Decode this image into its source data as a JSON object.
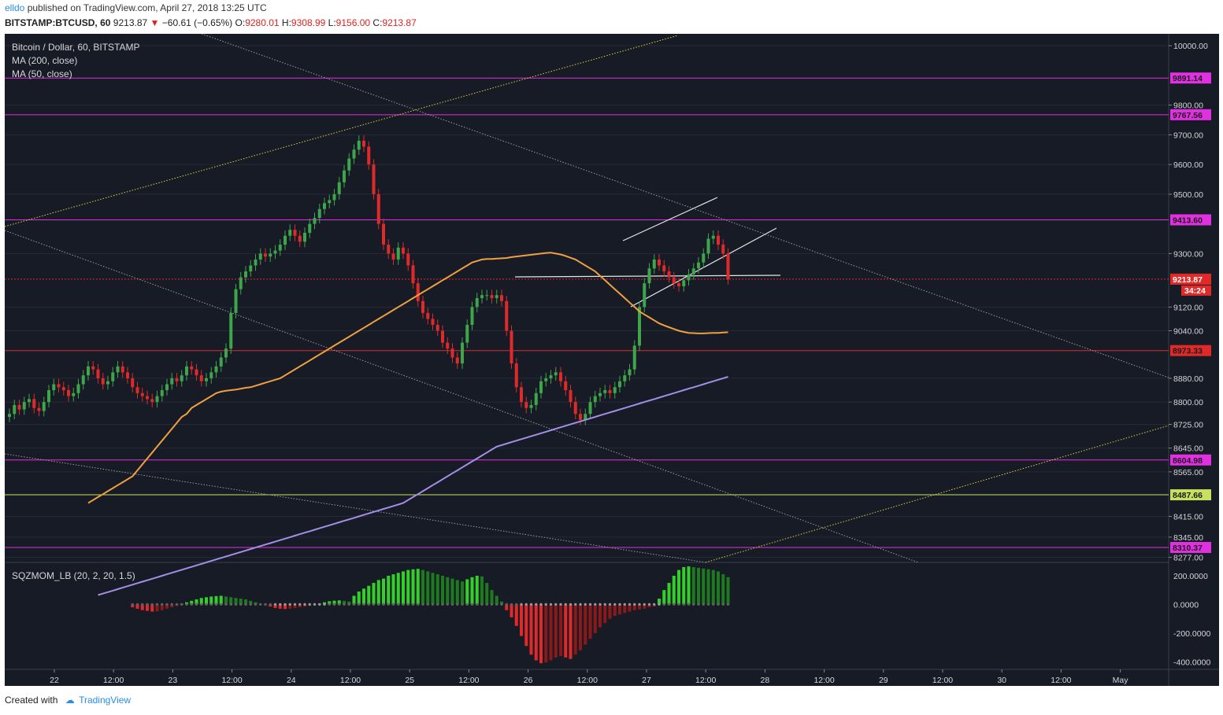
{
  "header": {
    "user": "elldo",
    "published": "published on TradingView.com, April 27, 2018 13:25 UTC",
    "symbol": "BITSTAMP:BTCUSD, 60",
    "last": "9213.87",
    "arrow": "▼",
    "change": "−60.61 (−0.65%)",
    "o_label": "O:",
    "o": "9280.01",
    "h_label": "H:",
    "h": "9308.99",
    "l_label": "L:",
    "l": "9156.00",
    "c_label": "C:",
    "c": "9213.87"
  },
  "legend": {
    "title": "Bitcoin / Dollar, 60, BITSTAMP",
    "ma200": "MA (200, close)",
    "ma50": "MA (50, close)",
    "sqz": "SQZMOM_LB (20, 2, 20, 1.5)"
  },
  "footer": {
    "created": "Created with",
    "brand": "TradingView"
  },
  "colors": {
    "background": "#171b26",
    "up": "#3fa54a",
    "down": "#e02a2a",
    "ma50": "#f0a040",
    "ma200": "#a58ee6",
    "level": "#e030e0",
    "level_green": "#c8e060",
    "trend_yellow": "#d8d040",
    "grid": "#252a38"
  },
  "chart_data": {
    "type": "candlestick",
    "x_axis": {
      "labels": [
        "22",
        "12:00",
        "23",
        "12:00",
        "24",
        "12:00",
        "25",
        "12:00",
        "26",
        "12:00",
        "27",
        "12:00",
        "28",
        "12:00",
        "29",
        "12:00",
        "30",
        "12:00",
        "May"
      ],
      "start": "2018-04-21 20:00",
      "interval": "1h"
    },
    "y_axis": {
      "tick_labels": [
        "10000.00",
        "9800.00",
        "9700.00",
        "9600.00",
        "9500.00",
        "9300.00",
        "9120.00",
        "9040.00",
        "8880.00",
        "8800.00",
        "8725.00",
        "8645.00",
        "8565.00",
        "8415.00",
        "8345.00",
        "8277.00"
      ],
      "range": [
        8260,
        10040
      ]
    },
    "price_levels": [
      {
        "label": "9891.14",
        "value": 9891.14,
        "color": "#e030e0"
      },
      {
        "label": "9767.56",
        "value": 9767.56,
        "color": "#e030e0"
      },
      {
        "label": "9413.60",
        "value": 9413.6,
        "color": "#e030e0"
      },
      {
        "label": "8973.33",
        "value": 8973.33,
        "color": "#e02a2a"
      },
      {
        "label": "8604.98",
        "value": 8604.98,
        "color": "#e030e0"
      },
      {
        "label": "8487.66",
        "value": 8487.66,
        "color": "#c8e060"
      },
      {
        "label": "8310.37",
        "value": 8310.37,
        "color": "#e030e0"
      }
    ],
    "current_price": {
      "label": "9213.87",
      "value": 9213.87,
      "countdown": "34:24"
    },
    "close": [
      8760,
      8790,
      8775,
      8800,
      8810,
      8780,
      8770,
      8800,
      8840,
      8860,
      8850,
      8840,
      8820,
      8830,
      8860,
      8890,
      8920,
      8910,
      8880,
      8860,
      8870,
      8900,
      8920,
      8900,
      8880,
      8850,
      8830,
      8820,
      8810,
      8800,
      8820,
      8840,
      8860,
      8880,
      8870,
      8890,
      8920,
      8910,
      8890,
      8870,
      8880,
      8900,
      8920,
      8950,
      8980,
      9100,
      9180,
      9220,
      9240,
      9260,
      9280,
      9300,
      9290,
      9300,
      9310,
      9330,
      9360,
      9380,
      9360,
      9340,
      9370,
      9400,
      9420,
      9450,
      9470,
      9480,
      9500,
      9540,
      9580,
      9620,
      9650,
      9680,
      9660,
      9600,
      9500,
      9400,
      9330,
      9300,
      9280,
      9320,
      9300,
      9260,
      9200,
      9140,
      9100,
      9080,
      9060,
      9040,
      9000,
      8980,
      8950,
      8930,
      9000,
      9060,
      9120,
      9150,
      9160,
      9160,
      9150,
      9160,
      9140,
      9040,
      8930,
      8850,
      8800,
      8780,
      8790,
      8830,
      8870,
      8880,
      8890,
      8900,
      8870,
      8840,
      8800,
      8760,
      8740,
      8760,
      8800,
      8820,
      8830,
      8840,
      8830,
      8850,
      8870,
      8890,
      8910,
      8990,
      9120,
      9200,
      9250,
      9280,
      9260,
      9240,
      9220,
      9200,
      9190,
      9210,
      9230,
      9250,
      9270,
      9300,
      9350,
      9360,
      9330,
      9300,
      9213.87
    ],
    "ma50": [
      8460,
      8470,
      8480,
      8490,
      8500,
      8510,
      8520,
      8530,
      8540,
      8550,
      8570,
      8590,
      8610,
      8630,
      8650,
      8670,
      8690,
      8710,
      8730,
      8750,
      8760,
      8780,
      8790,
      8800,
      8810,
      8820,
      8830,
      8835,
      8838,
      8840,
      8842,
      8845,
      8848,
      8850,
      8855,
      8860,
      8865,
      8870,
      8875,
      8880,
      8890,
      8900,
      8910,
      8920,
      8930,
      8940,
      8950,
      8960,
      8970,
      8980,
      8990,
      9000,
      9010,
      9020,
      9030,
      9040,
      9050,
      9060,
      9070,
      9080,
      9090,
      9100,
      9110,
      9120,
      9130,
      9140,
      9150,
      9160,
      9170,
      9180,
      9190,
      9200,
      9210,
      9220,
      9230,
      9240,
      9250,
      9260,
      9270,
      9275,
      9280,
      9282,
      9282,
      9283,
      9284,
      9285,
      9288,
      9290,
      9292,
      9294,
      9296,
      9298,
      9300,
      9302,
      9303,
      9300,
      9297,
      9292,
      9286,
      9280,
      9270,
      9260,
      9250,
      9240,
      9225,
      9210,
      9195,
      9180,
      9165,
      9150,
      9135,
      9120,
      9105,
      9095,
      9085,
      9075,
      9065,
      9058,
      9052,
      9046,
      9040,
      9036,
      9033,
      9032,
      9031,
      9031,
      9032,
      9033,
      9033,
      9034,
      9035
    ],
    "ma200": [
      8150,
      8155,
      8160,
      8165,
      8170,
      8175,
      8180,
      8185,
      8190,
      8195,
      8200,
      8205,
      8210,
      8215,
      8220,
      8225,
      8230,
      8235,
      8240,
      8245,
      8250,
      8255,
      8260,
      8265,
      8270,
      8275,
      8280,
      8285,
      8290,
      8295,
      8300,
      8305,
      8310,
      8315,
      8320,
      8325,
      8330,
      8335,
      8340,
      8345,
      8350,
      8355,
      8360,
      8365,
      8370,
      8375,
      8380,
      8385,
      8390,
      8395,
      8400,
      8405,
      8410,
      8415,
      8420,
      8425,
      8430,
      8435,
      8440,
      8445,
      8450,
      8455,
      8460,
      8470,
      8480,
      8490,
      8500,
      8510,
      8520,
      8530,
      8540,
      8550,
      8560,
      8570,
      8580,
      8590,
      8600,
      8610,
      8620,
      8630,
      8640,
      8650,
      8655,
      8660,
      8665,
      8670,
      8675,
      8680,
      8685,
      8690,
      8695,
      8700,
      8705,
      8710,
      8715,
      8720,
      8725,
      8730,
      8735,
      8740,
      8745,
      8750,
      8755,
      8760,
      8765,
      8770,
      8775,
      8780,
      8785,
      8790,
      8795,
      8800,
      8805,
      8810,
      8815,
      8820,
      8825,
      8830,
      8835,
      8840,
      8845,
      8850,
      8855,
      8860,
      8865,
      8870,
      8875,
      8880,
      8885
    ],
    "sqzmom": {
      "y_tick_labels": [
        "200.0000",
        "0.0000",
        "-200.0000",
        "-400.0000"
      ],
      "range": [
        -420,
        260
      ],
      "values": [
        -20,
        -30,
        -40,
        -45,
        -50,
        -48,
        -40,
        -30,
        -20,
        -10,
        5,
        15,
        25,
        35,
        45,
        50,
        55,
        58,
        60,
        55,
        50,
        45,
        40,
        35,
        25,
        15,
        5,
        -5,
        -15,
        -25,
        -30,
        -32,
        -30,
        -25,
        -20,
        -15,
        -10,
        -5,
        5,
        15,
        22,
        26,
        28,
        25,
        20,
        60,
        90,
        110,
        130,
        150,
        170,
        180,
        200,
        210,
        220,
        230,
        240,
        245,
        248,
        240,
        230,
        220,
        210,
        200,
        190,
        180,
        170,
        160,
        175,
        190,
        200,
        195,
        150,
        100,
        60,
        20,
        -40,
        -90,
        -150,
        -220,
        -290,
        -350,
        -390,
        -410,
        -405,
        -390,
        -370,
        -360,
        -370,
        -380,
        -350,
        -320,
        -280,
        -240,
        -200,
        -160,
        -130,
        -100,
        -80,
        -70,
        -60,
        -50,
        -40,
        -35,
        -30,
        -20,
        -15,
        40,
        100,
        150,
        200,
        240,
        260,
        265,
        260,
        255,
        250,
        245,
        240,
        230,
        210,
        190
      ]
    }
  }
}
